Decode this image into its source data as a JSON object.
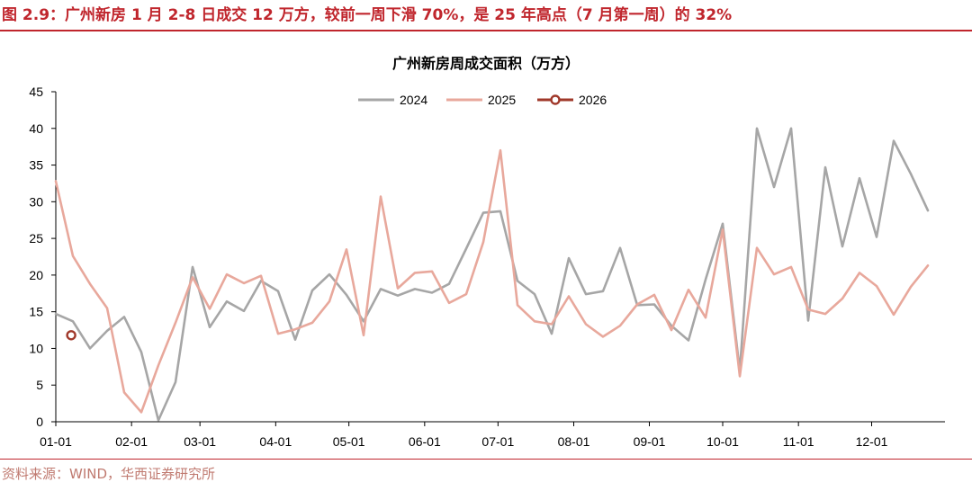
{
  "figure": {
    "title": "图 2.9：广州新房 1 月 2-8 日成交 12 万方，较前一周下滑 70%，是 25 年高点（7 月第一周）的 32%",
    "source": "资料来源：WIND，华西证券研究所"
  },
  "colors": {
    "accent": "#c0262d",
    "s2024": "#a6a6a6",
    "s2025": "#e8a89c",
    "s2026": "#a0382a"
  },
  "chart_data": {
    "type": "line",
    "title": "广州新房周成交面积（万方）",
    "xlabel": "",
    "ylabel": "",
    "ylim": [
      0,
      45
    ],
    "yticks": [
      0,
      5,
      10,
      15,
      20,
      25,
      30,
      35,
      40,
      45
    ],
    "xrange": [
      1,
      53
    ],
    "xticks": [
      {
        "label": "01-01",
        "week": 1
      },
      {
        "label": "02-01",
        "week": 5.43
      },
      {
        "label": "03-01",
        "week": 9.43
      },
      {
        "label": "04-01",
        "week": 13.86
      },
      {
        "label": "05-01",
        "week": 18.14
      },
      {
        "label": "06-01",
        "week": 22.57
      },
      {
        "label": "07-01",
        "week": 26.86
      },
      {
        "label": "08-01",
        "week": 31.29
      },
      {
        "label": "09-01",
        "week": 35.71
      },
      {
        "label": "10-01",
        "week": 40
      },
      {
        "label": "11-01",
        "week": 44.43
      },
      {
        "label": "12-01",
        "week": 48.71
      }
    ],
    "legend_position": "top",
    "grid": false,
    "series": [
      {
        "name": "2024",
        "x": [
          1,
          2,
          3,
          4,
          5,
          6,
          7,
          8,
          9,
          10,
          11,
          12,
          13,
          14,
          15,
          16,
          17,
          18,
          19,
          20,
          21,
          22,
          23,
          24,
          25,
          26,
          27,
          28,
          29,
          30,
          31,
          32,
          33,
          34,
          35,
          36,
          37,
          38,
          39,
          40,
          41,
          42,
          43,
          44,
          45,
          46,
          47,
          48,
          49,
          50,
          51,
          52
        ],
        "values": [
          14.7,
          13.7,
          10,
          12.4,
          14.3,
          9.5,
          0.2,
          5.4,
          21.1,
          12.9,
          16.4,
          15.1,
          19.2,
          17.8,
          11.2,
          17.9,
          20.1,
          17.3,
          13.7,
          18.1,
          17.2,
          18.1,
          17.6,
          18.8,
          23.6,
          28.5,
          28.7,
          19.2,
          17.4,
          12,
          22.3,
          17.4,
          17.8,
          23.7,
          15.9,
          16,
          13.1,
          11.1,
          19.4,
          27,
          6.9,
          40,
          32,
          40,
          13.8,
          34.7,
          23.9,
          33.2,
          25.2,
          38.3,
          33.8,
          28.8
        ]
      },
      {
        "name": "2025",
        "x": [
          1,
          2,
          3,
          4,
          5,
          6,
          7,
          8,
          9,
          10,
          11,
          12,
          13,
          14,
          15,
          16,
          17,
          18,
          19,
          20,
          21,
          22,
          23,
          24,
          25,
          26,
          27,
          28,
          29,
          30,
          31,
          32,
          33,
          34,
          35,
          36,
          37,
          38,
          39,
          40,
          41,
          42,
          43,
          44,
          45,
          46,
          47,
          48,
          49,
          50,
          51,
          52
        ],
        "values": [
          32.8,
          22.6,
          18.8,
          15.5,
          4,
          1.3,
          7.7,
          13.5,
          19.7,
          15.4,
          20.1,
          18.9,
          19.9,
          12,
          12.6,
          13.5,
          16.4,
          23.5,
          11.8,
          30.7,
          18.2,
          20.3,
          20.5,
          16.2,
          17.4,
          24.5,
          37,
          15.9,
          13.7,
          13.3,
          17.1,
          13.3,
          11.6,
          13.1,
          16,
          17.3,
          12.5,
          18,
          14.2,
          26.2,
          6.2,
          23.7,
          20.1,
          21.1,
          15.3,
          14.7,
          16.8,
          20.3,
          18.5,
          14.6,
          18.4,
          21.3
        ]
      },
      {
        "name": "2026",
        "x": [
          1.9
        ],
        "values": [
          11.8
        ]
      }
    ]
  }
}
